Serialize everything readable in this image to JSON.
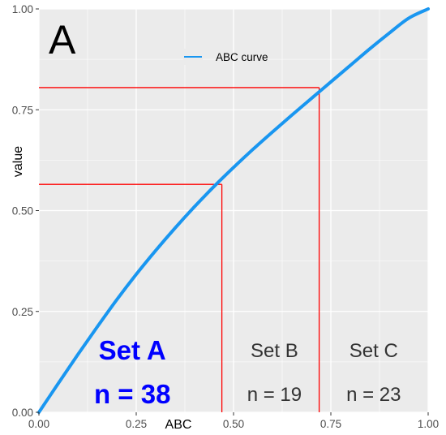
{
  "chart_data": {
    "type": "line",
    "panel_letter": "A",
    "title": "",
    "xlabel": "ABC",
    "ylabel": "value",
    "xlim": [
      0,
      1
    ],
    "ylim": [
      0,
      1
    ],
    "x_ticks": [
      0,
      0.25,
      0.5,
      0.75,
      1
    ],
    "y_ticks": [
      0,
      0.25,
      0.5,
      0.75,
      1
    ],
    "x_tick_labels": [
      "0.00",
      "0.25",
      "0.50",
      "0.75",
      "1.00"
    ],
    "y_tick_labels": [
      "0.00",
      "0.25",
      "0.50",
      "0.75",
      "1.00"
    ],
    "grid": true,
    "legend": {
      "placement": "top-center",
      "entries": [
        "ABC curve"
      ]
    },
    "series": [
      {
        "name": "ABC curve",
        "color": "#1996f0",
        "x": [
          0,
          0.05,
          0.1,
          0.15,
          0.2,
          0.25,
          0.3,
          0.35,
          0.4,
          0.45,
          0.5,
          0.55,
          0.6,
          0.65,
          0.7,
          0.75,
          0.8,
          0.85,
          0.9,
          0.95,
          1.0
        ],
        "y": [
          0,
          0.072,
          0.143,
          0.212,
          0.279,
          0.342,
          0.401,
          0.457,
          0.51,
          0.56,
          0.607,
          0.652,
          0.695,
          0.737,
          0.778,
          0.819,
          0.86,
          0.901,
          0.94,
          0.977,
          1.0
        ]
      }
    ],
    "reference_lines": {
      "color": "#ff0000",
      "points": [
        {
          "x": 0.47,
          "y": 0.565
        },
        {
          "x": 0.72,
          "y": 0.805
        }
      ]
    },
    "annotations": [
      {
        "set": "Set A",
        "n": "n = 38",
        "x": 0.24,
        "emphasis": true,
        "color": "#0000ff"
      },
      {
        "set": "Set B",
        "n": "n = 19",
        "x": 0.605,
        "emphasis": false,
        "color": "#333333"
      },
      {
        "set": "Set C",
        "n": "n = 23",
        "x": 0.86,
        "emphasis": false,
        "color": "#333333"
      }
    ],
    "panel_background": "#ebebeb",
    "grid_color": "#ffffff"
  }
}
